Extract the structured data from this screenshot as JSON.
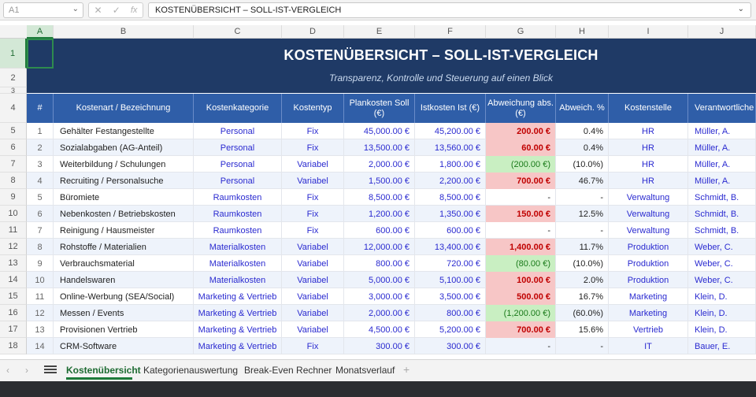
{
  "formula_bar": {
    "name_box": "A1",
    "icons": [
      "close-icon",
      "check-icon",
      "fx-icon"
    ],
    "content": "KOSTENÜBERSICHT – SOLL-IST-VERGLEICH"
  },
  "columns": [
    "A",
    "B",
    "C",
    "D",
    "E",
    "F",
    "G",
    "H",
    "I",
    "J"
  ],
  "rows": [
    "1",
    "2",
    "3",
    "4",
    "5",
    "6",
    "7",
    "8",
    "9",
    "10",
    "11",
    "12",
    "13",
    "14",
    "15",
    "16",
    "17",
    "18"
  ],
  "sheet": {
    "title": "KOSTENÜBERSICHT – SOLL-IST-VERGLEICH",
    "subtitle": "Transparenz, Kontrolle und Steuerung auf einen Blick"
  },
  "table": {
    "headers": [
      "#",
      "Kostenart / Bezeichnung",
      "Kostenkategorie",
      "Kostentyp",
      "Plankosten Soll (€)",
      "Istkosten Ist (€)",
      "Abweichung abs. (€)",
      "Abweich. %",
      "Kostenstelle",
      "Verantwortliche"
    ],
    "rows": [
      {
        "n": "1",
        "name": "Gehälter Festangestellte",
        "cat": "Personal",
        "typ": "Fix",
        "soll": "45,000.00 €",
        "ist": "45,200.00 €",
        "abw": "200.00 €",
        "abw_state": "pos",
        "pct": "0.4%",
        "stelle": "HR",
        "resp": "Müller, A."
      },
      {
        "n": "2",
        "name": "Sozialabgaben (AG-Anteil)",
        "cat": "Personal",
        "typ": "Fix",
        "soll": "13,500.00 €",
        "ist": "13,560.00 €",
        "abw": "60.00 €",
        "abw_state": "pos",
        "pct": "0.4%",
        "stelle": "HR",
        "resp": "Müller, A."
      },
      {
        "n": "3",
        "name": "Weiterbildung / Schulungen",
        "cat": "Personal",
        "typ": "Variabel",
        "soll": "2,000.00 €",
        "ist": "1,800.00 €",
        "abw": "(200.00 €)",
        "abw_state": "neg",
        "pct": "(10.0%)",
        "stelle": "HR",
        "resp": "Müller, A."
      },
      {
        "n": "4",
        "name": "Recruiting / Personalsuche",
        "cat": "Personal",
        "typ": "Variabel",
        "soll": "1,500.00 €",
        "ist": "2,200.00 €",
        "abw": "700.00 €",
        "abw_state": "pos",
        "pct": "46.7%",
        "stelle": "HR",
        "resp": "Müller, A."
      },
      {
        "n": "5",
        "name": "Büromiete",
        "cat": "Raumkosten",
        "typ": "Fix",
        "soll": "8,500.00 €",
        "ist": "8,500.00 €",
        "abw": "-",
        "abw_state": "zero",
        "pct": "-",
        "stelle": "Verwaltung",
        "resp": "Schmidt, B."
      },
      {
        "n": "6",
        "name": "Nebenkosten / Betriebskosten",
        "cat": "Raumkosten",
        "typ": "Fix",
        "soll": "1,200.00 €",
        "ist": "1,350.00 €",
        "abw": "150.00 €",
        "abw_state": "pos",
        "pct": "12.5%",
        "stelle": "Verwaltung",
        "resp": "Schmidt, B."
      },
      {
        "n": "7",
        "name": "Reinigung / Hausmeister",
        "cat": "Raumkosten",
        "typ": "Fix",
        "soll": "600.00 €",
        "ist": "600.00 €",
        "abw": "-",
        "abw_state": "zero",
        "pct": "-",
        "stelle": "Verwaltung",
        "resp": "Schmidt, B."
      },
      {
        "n": "8",
        "name": "Rohstoffe / Materialien",
        "cat": "Materialkosten",
        "typ": "Variabel",
        "soll": "12,000.00 €",
        "ist": "13,400.00 €",
        "abw": "1,400.00 €",
        "abw_state": "pos",
        "pct": "11.7%",
        "stelle": "Produktion",
        "resp": "Weber, C."
      },
      {
        "n": "9",
        "name": "Verbrauchsmaterial",
        "cat": "Materialkosten",
        "typ": "Variabel",
        "soll": "800.00 €",
        "ist": "720.00 €",
        "abw": "(80.00 €)",
        "abw_state": "neg",
        "pct": "(10.0%)",
        "stelle": "Produktion",
        "resp": "Weber, C."
      },
      {
        "n": "10",
        "name": "Handelswaren",
        "cat": "Materialkosten",
        "typ": "Variabel",
        "soll": "5,000.00 €",
        "ist": "5,100.00 €",
        "abw": "100.00 €",
        "abw_state": "pos",
        "pct": "2.0%",
        "stelle": "Produktion",
        "resp": "Weber, C."
      },
      {
        "n": "11",
        "name": "Online-Werbung (SEA/Social)",
        "cat": "Marketing & Vertrieb",
        "typ": "Variabel",
        "soll": "3,000.00 €",
        "ist": "3,500.00 €",
        "abw": "500.00 €",
        "abw_state": "pos",
        "pct": "16.7%",
        "stelle": "Marketing",
        "resp": "Klein, D."
      },
      {
        "n": "12",
        "name": "Messen / Events",
        "cat": "Marketing & Vertrieb",
        "typ": "Variabel",
        "soll": "2,000.00 €",
        "ist": "800.00 €",
        "abw": "(1,200.00 €)",
        "abw_state": "neg",
        "pct": "(60.0%)",
        "stelle": "Marketing",
        "resp": "Klein, D."
      },
      {
        "n": "13",
        "name": "Provisionen Vertrieb",
        "cat": "Marketing & Vertrieb",
        "typ": "Variabel",
        "soll": "4,500.00 €",
        "ist": "5,200.00 €",
        "abw": "700.00 €",
        "abw_state": "pos",
        "pct": "15.6%",
        "stelle": "Vertrieb",
        "resp": "Klein, D."
      },
      {
        "n": "14",
        "name": "CRM-Software",
        "cat": "Marketing & Vertrieb",
        "typ": "Fix",
        "soll": "300.00 €",
        "ist": "300.00 €",
        "abw": "-",
        "abw_state": "zero",
        "pct": "-",
        "stelle": "IT",
        "resp": "Bauer, E."
      }
    ]
  },
  "tabs": {
    "items": [
      "Kostenübersicht",
      "Kategorienauswertung",
      "Break-Even Rechner",
      "Monatsverlauf"
    ],
    "active": "Kostenübersicht",
    "add_label": "+"
  },
  "colors": {
    "title_band": "#1f3a66",
    "header_band": "#2f5ea8",
    "over_budget_fill": "#f7c6c6",
    "under_budget_fill": "#c9efc2",
    "accent": "#1e7b3a"
  }
}
